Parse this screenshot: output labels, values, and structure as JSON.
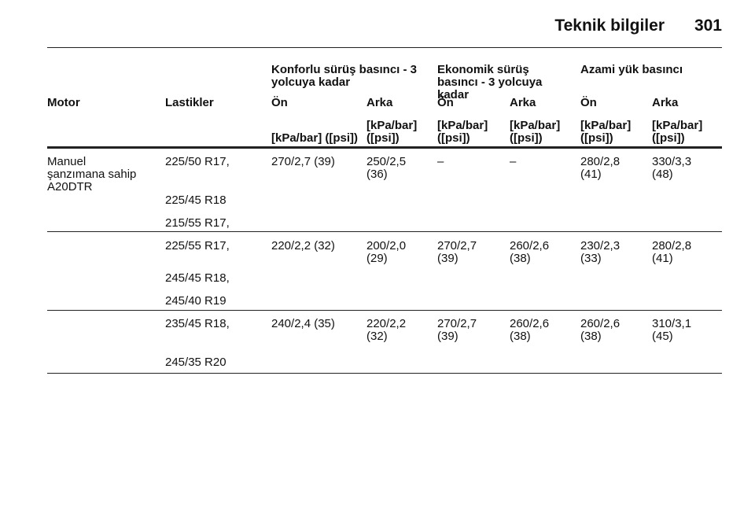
{
  "header": {
    "title": "Teknik bilgiler",
    "page": "301"
  },
  "table": {
    "group_headers": [
      "Konforlu sürüş basıncı - 3 yolcuya kadar",
      "Ekonomik sürüş basıncı - 3 yolcuya kadar",
      "Azami yük basıncı"
    ],
    "columns": [
      "Motor",
      "Lastikler",
      "Ön",
      "Arka",
      "Ön",
      "Arka",
      "Ön",
      "Arka"
    ],
    "units": [
      "[kPa/bar] ([psi])",
      "[kPa/bar] ([psi])",
      "[kPa/bar] ([psi])",
      "[kPa/bar] ([psi])",
      "[kPa/bar] ([psi])",
      "[kPa/bar] ([psi])"
    ],
    "groups": [
      {
        "motor": "Manuel şanzımana sahip A20DTR",
        "tires": [
          "225/50 R17,",
          "225/45 R18",
          "215/55 R17,"
        ],
        "values": [
          "270/2,7 (39)",
          "250/2,5 (36)",
          "–",
          "–",
          "280/2,8 (41)",
          "330/3,3 (48)"
        ]
      },
      {
        "tires": [
          "225/55 R17,",
          "245/45 R18,",
          "245/40 R19"
        ],
        "values": [
          "220/2,2 (32)",
          "200/2,0 (29)",
          "270/2,7 (39)",
          "260/2,6 (38)",
          "230/2,3 (33)",
          "280/2,8 (41)"
        ]
      },
      {
        "tires": [
          "235/45 R18,",
          "245/35 R20"
        ],
        "values": [
          "240/2,4 (35)",
          "220/2,2 (32)",
          "270/2,7 (39)",
          "260/2,6 (38)",
          "260/2,6 (38)",
          "310/3,1 (45)"
        ]
      }
    ]
  }
}
